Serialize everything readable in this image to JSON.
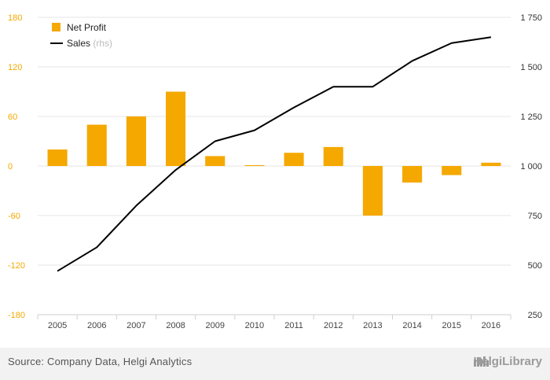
{
  "chart_data": {
    "type": "bar",
    "categories": [
      "2005",
      "2006",
      "2007",
      "2008",
      "2009",
      "2010",
      "2011",
      "2012",
      "2013",
      "2014",
      "2015",
      "2016"
    ],
    "series": [
      {
        "name": "Net Profit",
        "type": "bar",
        "axis": "left",
        "color": "#f5a800",
        "values": [
          20,
          50,
          60,
          90,
          12,
          1,
          16,
          23,
          -60,
          -20,
          -11,
          4
        ]
      },
      {
        "name": "Sales",
        "type": "line",
        "axis": "right",
        "color": "#000000",
        "values": [
          470,
          590,
          800,
          980,
          1125,
          1180,
          1295,
          1400,
          1400,
          1530,
          1620,
          1650
        ]
      }
    ],
    "legend": [
      {
        "label": "Net Profit",
        "suffix": ""
      },
      {
        "label": "Sales",
        "suffix": "(rhs)"
      }
    ],
    "left_axis": {
      "ylim": [
        -180,
        180
      ],
      "ticks": [
        180,
        120,
        60,
        0,
        -60,
        -120,
        -180
      ],
      "tick_labels": [
        "180",
        "120",
        "60",
        "0",
        "-60",
        "-120",
        "-180"
      ],
      "label_color": "#f5a800"
    },
    "right_axis": {
      "ylim": [
        250,
        1750
      ],
      "ticks": [
        1750,
        1500,
        1250,
        1000,
        750,
        500,
        250
      ],
      "tick_labels": [
        "1 750",
        "1 500",
        "1 250",
        "1 000",
        "750",
        "500",
        "250"
      ]
    },
    "grid": true,
    "legend_position": "top-left"
  },
  "footer": {
    "source": "Source: Company Data, Helgi Analytics",
    "brand": "HelgiLibrary"
  }
}
